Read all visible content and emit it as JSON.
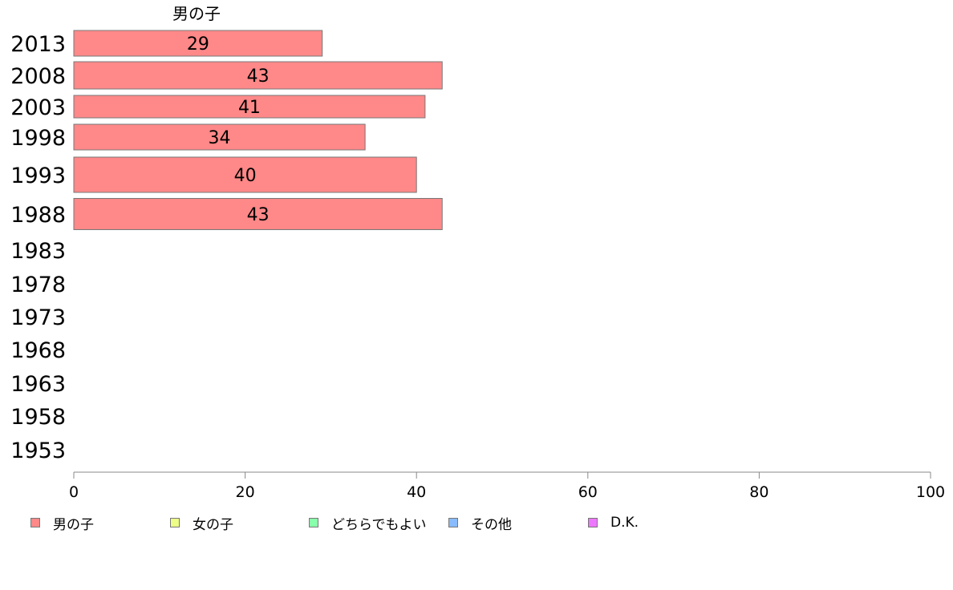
{
  "chart_data": {
    "type": "bar",
    "orientation": "horizontal",
    "stacked": true,
    "categories": [
      "2013",
      "2008",
      "2003",
      "1998",
      "1993",
      "1988",
      "1983",
      "1978",
      "1973",
      "1968",
      "1963",
      "1958",
      "1953"
    ],
    "series": [
      {
        "name": "男の子",
        "color": "#ff8888",
        "values": [
          29,
          43,
          41,
          34,
          40,
          43,
          null,
          null,
          null,
          null,
          null,
          null,
          null
        ]
      },
      {
        "name": "女の子",
        "color": "#eeff88",
        "values": [
          null,
          null,
          null,
          null,
          null,
          null,
          null,
          null,
          null,
          null,
          null,
          null,
          null
        ]
      },
      {
        "name": "どちらでもよい",
        "color": "#88ffaa",
        "values": [
          null,
          null,
          null,
          null,
          null,
          null,
          null,
          null,
          null,
          null,
          null,
          null,
          null
        ]
      },
      {
        "name": "その他",
        "color": "#88bbff",
        "values": [
          null,
          null,
          null,
          null,
          null,
          null,
          null,
          null,
          null,
          null,
          null,
          null,
          null
        ]
      },
      {
        "name": "D.K.",
        "color": "#ee77ff",
        "values": [
          null,
          null,
          null,
          null,
          null,
          null,
          null,
          null,
          null,
          null,
          null,
          null,
          null
        ]
      }
    ],
    "series_label": "男の子",
    "xlim": [
      0,
      100
    ],
    "xticks": [
      "0",
      "20",
      "40",
      "60",
      "80",
      "100"
    ],
    "grid": false,
    "legend_position": "bottom"
  }
}
